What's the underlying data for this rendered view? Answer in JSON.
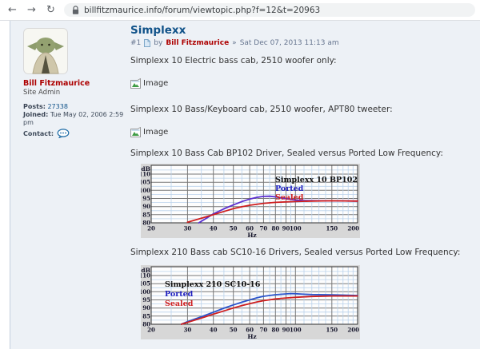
{
  "browser": {
    "url": "billfitzmaurice.info/forum/viewtopic.php?f=12&t=20963"
  },
  "icons": {
    "back": "←",
    "forward": "→",
    "reload": "↻"
  },
  "colors": {
    "title_blue": "#105289",
    "author_red": "#ad0000",
    "link_blue": "#105289",
    "panel_bg": "#edf1f6",
    "panel_border": "#c3cfdd",
    "body_text": "#333333",
    "meta_text": "#66758f",
    "chrome_icon": "#5f6368",
    "url_text": "#3c4043",
    "url_pill_bg": "#f1f3f4"
  },
  "sidebar": {
    "username": "Bill Fitzmaurice",
    "rank": "Site Admin",
    "posts_label": "Posts:",
    "posts": "27338",
    "joined_label": "Joined:",
    "joined": "Tue May 02, 2006 2:59 pm",
    "contact_label": "Contact:"
  },
  "post": {
    "title": "Simplexx",
    "number": "#1",
    "by_label": "by",
    "author": "Bill Fitzmaurice",
    "separator": "»",
    "date": "Sat Dec 07, 2013 11:13 am",
    "image_placeholder_label": "Image",
    "paragraphs": [
      "Simplexx 10 Electric bass cab, 2510 woofer only:",
      "Simplexx 10 Bass/Keyboard cab, 2510 woofer, APT80 tweeter:",
      "Simplexx 10 Bass Cab BP102 Driver, Sealed versus Ported Low Frequency:",
      "Simplexx 210 Bass cab SC10-16 Drivers, Sealed versus Ported Low Frequency:"
    ]
  },
  "chart_style": {
    "bg": "#d7d7d7",
    "plot_bg": "#fdfdfd",
    "grid_minor": "#b9d2ec",
    "grid_major": "#787878",
    "border": "#303030",
    "text": "#14142a"
  },
  "chart_data": [
    {
      "type": "line",
      "title": "Simplexx 10 BP102",
      "xlabel": "Hz",
      "ylabel": "dB",
      "x_scale": "log",
      "xlim": [
        20,
        200
      ],
      "ylim": [
        80,
        115
      ],
      "x_ticks": [
        20,
        30,
        40,
        50,
        60,
        70,
        80,
        90,
        100,
        150,
        200
      ],
      "x_minor": [
        25,
        35,
        45,
        55,
        65,
        75,
        85,
        95,
        110,
        120,
        130,
        140,
        160,
        170,
        180,
        190
      ],
      "y_ticks": [
        110,
        105,
        100,
        95,
        90,
        85,
        80
      ],
      "grid": true,
      "legend_position": "top-right",
      "series": [
        {
          "name": "Ported",
          "line_color": "#5b2fd0",
          "label_color": "#1f1fc0",
          "points": [
            [
              34,
              80
            ],
            [
              37,
              82.8
            ],
            [
              40,
              85.5
            ],
            [
              45,
              88.6
            ],
            [
              50,
              91
            ],
            [
              55,
              93.1
            ],
            [
              60,
              94.6
            ],
            [
              65,
              95.7
            ],
            [
              70,
              96.3
            ],
            [
              75,
              96.4
            ],
            [
              80,
              96
            ],
            [
              90,
              94.9
            ],
            [
              100,
              94
            ],
            [
              110,
              93.7
            ],
            [
              130,
              93.6
            ],
            [
              150,
              93.6
            ],
            [
              200,
              93.4
            ]
          ]
        },
        {
          "name": "Sealed",
          "line_color": "#cf1f1f",
          "label_color": "#cf1f1f",
          "points": [
            [
              30,
              80.4
            ],
            [
              35,
              82.8
            ],
            [
              40,
              85
            ],
            [
              45,
              87
            ],
            [
              50,
              88.7
            ],
            [
              55,
              89.9
            ],
            [
              60,
              90.8
            ],
            [
              70,
              92
            ],
            [
              80,
              92.6
            ],
            [
              90,
              92.9
            ],
            [
              100,
              93.1
            ],
            [
              120,
              93.4
            ],
            [
              150,
              93.6
            ],
            [
              200,
              93.4
            ]
          ]
        }
      ]
    },
    {
      "type": "line",
      "title": "Simplexx 210 SC10-16",
      "xlabel": "Hz",
      "ylabel": "dB",
      "x_scale": "log",
      "xlim": [
        20,
        200
      ],
      "ylim": [
        80,
        115
      ],
      "x_ticks": [
        20,
        30,
        40,
        50,
        60,
        70,
        80,
        90,
        100,
        150,
        200
      ],
      "x_minor": [
        25,
        35,
        45,
        55,
        65,
        75,
        85,
        95,
        110,
        120,
        130,
        140,
        160,
        170,
        180,
        190
      ],
      "y_ticks": [
        110,
        105,
        100,
        95,
        90,
        85,
        80
      ],
      "grid": true,
      "legend_position": "top-left",
      "series": [
        {
          "name": "Ported",
          "line_color": "#2c55cc",
          "label_color": "#1f1fc0",
          "points": [
            [
              28,
              80
            ],
            [
              30,
              81.6
            ],
            [
              35,
              84.6
            ],
            [
              40,
              87.4
            ],
            [
              45,
              89.9
            ],
            [
              50,
              91.9
            ],
            [
              55,
              93.6
            ],
            [
              60,
              95
            ],
            [
              65,
              96.3
            ],
            [
              70,
              97.2
            ],
            [
              80,
              98.2
            ],
            [
              90,
              98.7
            ],
            [
              95,
              98.9
            ],
            [
              100,
              98.8
            ],
            [
              110,
              98.5
            ],
            [
              120,
              98.3
            ],
            [
              150,
              98.1
            ],
            [
              200,
              97.7
            ]
          ]
        },
        {
          "name": "Sealed",
          "line_color": "#cf1f1f",
          "label_color": "#cf1f1f",
          "points": [
            [
              28,
              80
            ],
            [
              30,
              81.2
            ],
            [
              35,
              83.8
            ],
            [
              40,
              86.2
            ],
            [
              45,
              88.2
            ],
            [
              50,
              90
            ],
            [
              55,
              91.5
            ],
            [
              60,
              92.7
            ],
            [
              65,
              93.7
            ],
            [
              70,
              94.5
            ],
            [
              80,
              95.6
            ],
            [
              90,
              96.2
            ],
            [
              100,
              96.6
            ],
            [
              120,
              97.1
            ],
            [
              150,
              97.4
            ],
            [
              200,
              97.4
            ]
          ]
        }
      ]
    }
  ]
}
